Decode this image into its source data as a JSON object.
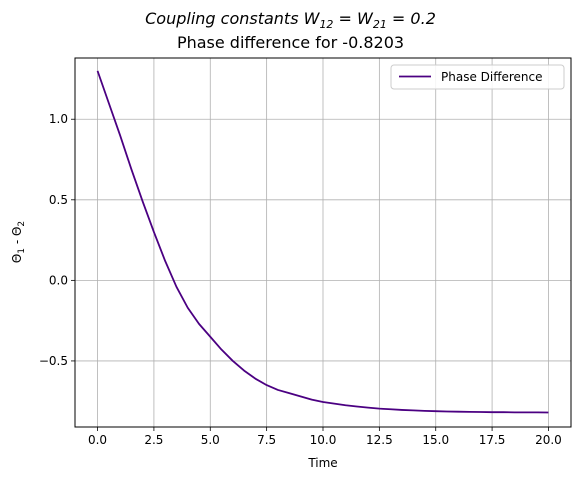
{
  "title": {
    "line1_prefix": "Coupling constants  W",
    "line1_sub1": "12",
    "line1_mid": " = W",
    "line1_sub2": "21",
    "line1_suffix": " = 0.2",
    "line2": "Phase difference for  -0.8203"
  },
  "chart_data": {
    "type": "line",
    "xlabel": "Time",
    "ylabel": "Θ1 - Θ2",
    "xlim": [
      -1.0,
      21.0
    ],
    "ylim": [
      -0.91,
      1.38
    ],
    "grid": true,
    "legend_position": "top-right",
    "x_ticks": [
      "0.0",
      "2.5",
      "5.0",
      "7.5",
      "10.0",
      "12.5",
      "15.0",
      "17.5",
      "20.0"
    ],
    "y_ticks": [
      "1.0",
      "0.5",
      "0.0",
      "−0.5"
    ],
    "series": [
      {
        "name": "Phase Difference",
        "color": "#4b0082",
        "x": [
          0,
          0.5,
          1,
          1.5,
          2,
          2.5,
          3,
          3.5,
          4,
          4.5,
          5,
          5.5,
          6,
          6.5,
          7,
          7.5,
          8,
          8.5,
          9,
          9.5,
          10,
          10.5,
          11,
          11.5,
          12,
          12.5,
          13,
          13.5,
          14,
          14.5,
          15,
          15.5,
          16,
          16.5,
          17,
          17.5,
          18,
          18.5,
          19,
          19.5,
          20
        ],
        "y": [
          1.3,
          1.1,
          0.9,
          0.69,
          0.49,
          0.3,
          0.12,
          -0.04,
          -0.17,
          -0.27,
          -0.35,
          -0.43,
          -0.5,
          -0.56,
          -0.61,
          -0.65,
          -0.68,
          -0.7,
          -0.72,
          -0.74,
          -0.755,
          -0.765,
          -0.775,
          -0.783,
          -0.79,
          -0.796,
          -0.8,
          -0.804,
          -0.807,
          -0.81,
          -0.812,
          -0.814,
          -0.815,
          -0.816,
          -0.817,
          -0.818,
          -0.818,
          -0.819,
          -0.819,
          -0.819,
          -0.82
        ]
      }
    ]
  }
}
